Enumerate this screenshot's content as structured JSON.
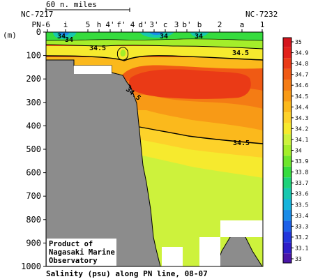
{
  "chart_data": {
    "type": "heatmap",
    "title": "Salinity (psu) along PN line, 08-07",
    "ylabel": "(m)",
    "ylim": [
      0,
      1000
    ],
    "y_ticks": [
      0,
      100,
      200,
      300,
      400,
      500,
      600,
      700,
      800,
      900,
      1000
    ],
    "scale": {
      "label": "60 n. miles"
    },
    "stations": [
      "PN-6",
      "i",
      "5",
      "h",
      "4'",
      "f'",
      "4",
      "d'",
      "3'",
      "c",
      "3",
      "b'",
      "b",
      "2",
      "a",
      "1"
    ],
    "station_ids": {
      "left": "NC-7217",
      "right": "NC-7232"
    },
    "contour_labels": [
      "34",
      "34",
      "34",
      "34",
      "34.5",
      "34.5",
      "34.5",
      "34.5"
    ],
    "colorbar": {
      "levels": [
        "35",
        "34.9",
        "34.8",
        "34.7",
        "34.6",
        "34.5",
        "34.4",
        "34.3",
        "34.2",
        "34.1",
        "34",
        "33.9",
        "33.8",
        "33.7",
        "33.6",
        "33.5",
        "33.4",
        "33.3",
        "33.2",
        "33.1",
        "33"
      ],
      "colors": [
        "#d4141c",
        "#e2201a",
        "#ea3a16",
        "#f05a14",
        "#f47c14",
        "#f89a16",
        "#fbb91c",
        "#fdd22a",
        "#f6ea2e",
        "#cdf23c",
        "#a4ee2a",
        "#6ee62c",
        "#36dc3e",
        "#1ed27a",
        "#18c8b0",
        "#16b4dc",
        "#1a8ce8",
        "#1c60e8",
        "#2236dc",
        "#2e1ec8",
        "#4a16a8"
      ]
    },
    "credit": [
      "Product of",
      "Nagasaki Marine",
      "Observatory"
    ],
    "grid": false,
    "legend_placement": "right"
  }
}
